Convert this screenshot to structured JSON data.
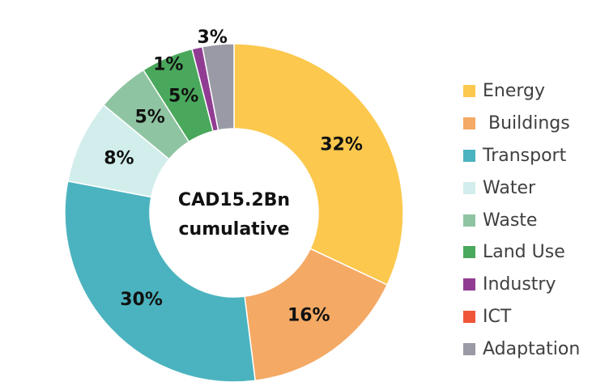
{
  "chart_data": {
    "type": "pie",
    "center_label": [
      "CAD15.2Bn",
      "cumulative"
    ],
    "slices": [
      {
        "name": "Energy",
        "legend_label": "Energy",
        "value": 32,
        "label": "32%",
        "color": "#FCC84D"
      },
      {
        "name": "Buildings",
        "legend_label": " Buildings",
        "value": 16,
        "label": "16%",
        "color": "#F4A964"
      },
      {
        "name": "Transport",
        "legend_label": "Transport",
        "value": 30,
        "label": "30%",
        "color": "#4BB3BF"
      },
      {
        "name": "Water",
        "legend_label": "Water",
        "value": 8,
        "label": "8%",
        "color": "#D2EEEC"
      },
      {
        "name": "Waste",
        "legend_label": "Waste",
        "value": 5,
        "label": "5%",
        "color": "#8FC4A2"
      },
      {
        "name": "Land Use",
        "legend_label": "Land Use",
        "value": 5,
        "label": "5%",
        "color": "#4AA85C"
      },
      {
        "name": "Industry",
        "legend_label": "Industry",
        "value": 1,
        "label": "1%",
        "color": "#913C93"
      },
      {
        "name": "ICT",
        "legend_label": "ICT",
        "value": 0,
        "label": "",
        "color": "#F0553A"
      },
      {
        "name": "Adaptation",
        "legend_label": "Adaptation",
        "value": 3,
        "label": "3%",
        "color": "#9A9AA6"
      }
    ],
    "legend_position": "right"
  }
}
